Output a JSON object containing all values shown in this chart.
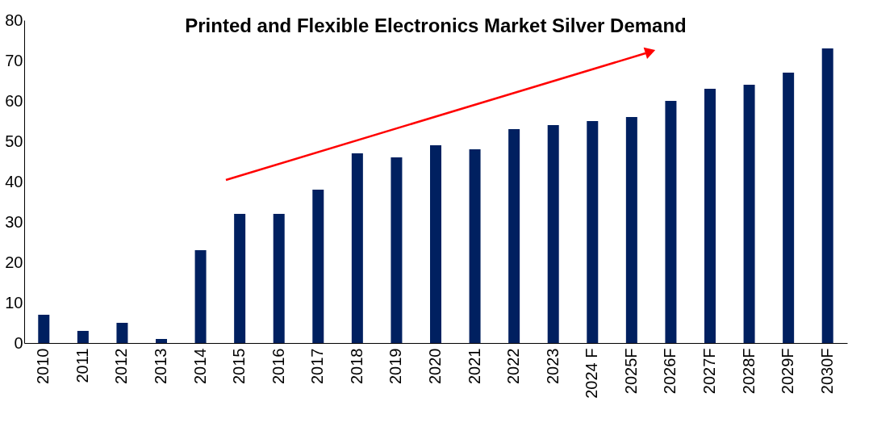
{
  "chart_data": {
    "type": "bar",
    "title": "Printed and Flexible Electronics Market Silver Demand",
    "categories": [
      "2010",
      "2011",
      "2012",
      "2013",
      "2014",
      "2015",
      "2016",
      "2017",
      "2018",
      "2019",
      "2020",
      "2021",
      "2022",
      "2023",
      "2024 F",
      "2025F",
      "2026F",
      "2027F",
      "2028F",
      "2029F",
      "2030F"
    ],
    "values": [
      7,
      3,
      5,
      1,
      23,
      32,
      32,
      38,
      47,
      46,
      49,
      48,
      53,
      54,
      55,
      56,
      60,
      63,
      64,
      67,
      73
    ],
    "color": "#002060",
    "ylim": [
      0,
      80
    ],
    "yticks": [
      0,
      10,
      20,
      30,
      40,
      50,
      60,
      70,
      80
    ],
    "grid": false
  }
}
